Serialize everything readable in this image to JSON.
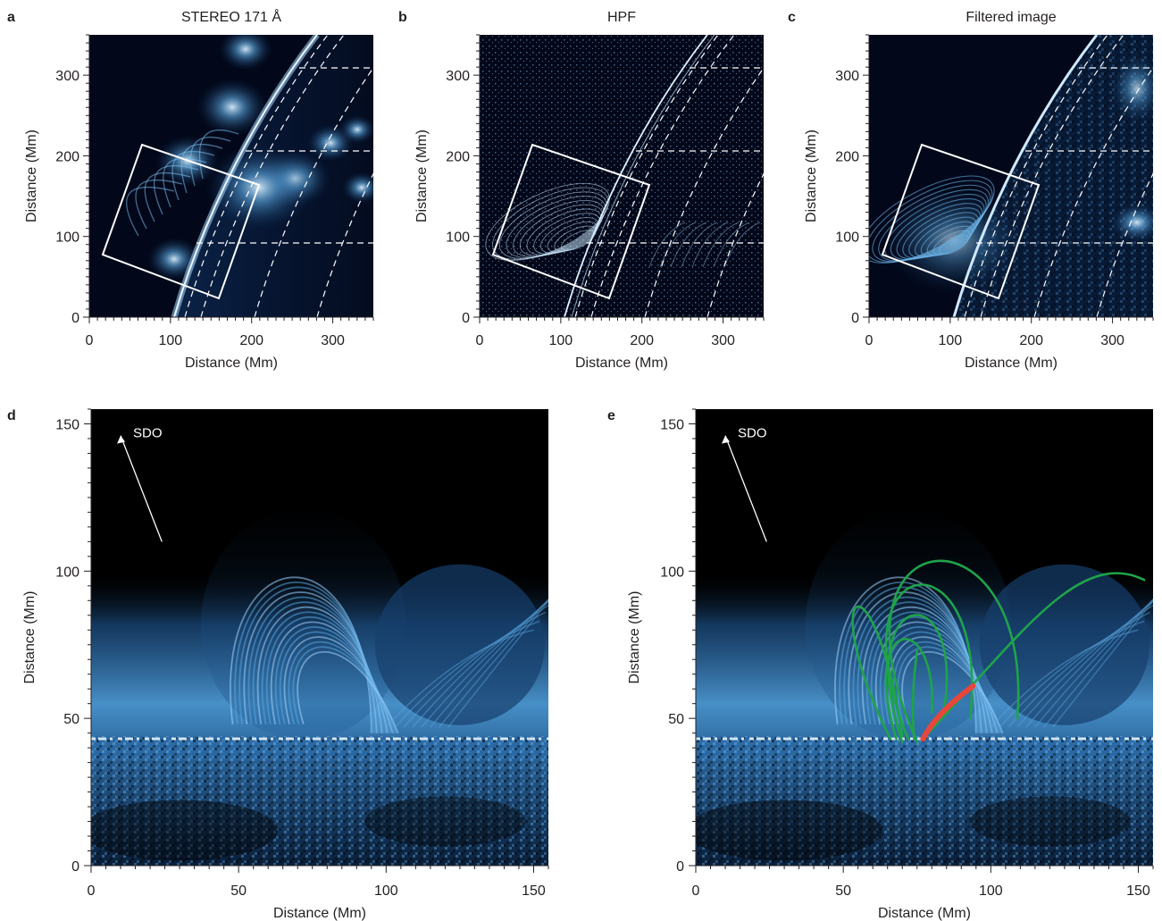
{
  "figure": {
    "panels_top": [
      {
        "letter": "a",
        "title": "STEREO 171 Å",
        "xlabel": "Distance (Mm)",
        "ylabel": "Distance (Mm)",
        "xticks": [
          "0",
          "100",
          "200",
          "300"
        ],
        "yticks": [
          "0",
          "100",
          "200",
          "300"
        ],
        "style": "glow"
      },
      {
        "letter": "b",
        "title": "HPF",
        "xlabel": "Distance (Mm)",
        "ylabel": "Distance (Mm)",
        "xticks": [
          "0",
          "100",
          "200",
          "300"
        ],
        "yticks": [
          "0",
          "100",
          "200",
          "300"
        ],
        "style": "edges"
      },
      {
        "letter": "c",
        "title": "Filtered image",
        "xlabel": "Distance (Mm)",
        "ylabel": "Distance (Mm)",
        "xticks": [
          "0",
          "100",
          "200",
          "300"
        ],
        "yticks": [
          "0",
          "100",
          "200",
          "300"
        ],
        "style": "filtered"
      }
    ],
    "panels_bottom": [
      {
        "letter": "d",
        "annotation": "SDO",
        "xlabel": "Distance (Mm)",
        "ylabel": "Distance (Mm)",
        "xticks": [
          "0",
          "50",
          "100",
          "150"
        ],
        "yticks": [
          "0",
          "50",
          "100",
          "150"
        ],
        "overlay": false
      },
      {
        "letter": "e",
        "annotation": "SDO",
        "xlabel": "Distance (Mm)",
        "ylabel": "Distance (Mm)",
        "xticks": [
          "0",
          "50",
          "100",
          "150"
        ],
        "yticks": [
          "0",
          "50",
          "100",
          "150"
        ],
        "overlay": true
      }
    ]
  },
  "colors": {
    "background": "#000000",
    "solar_blue": "#5aa6de",
    "bright": "#e8f6ff",
    "field_lines": "#1fa34a",
    "highlight_line": "#e8463c"
  }
}
